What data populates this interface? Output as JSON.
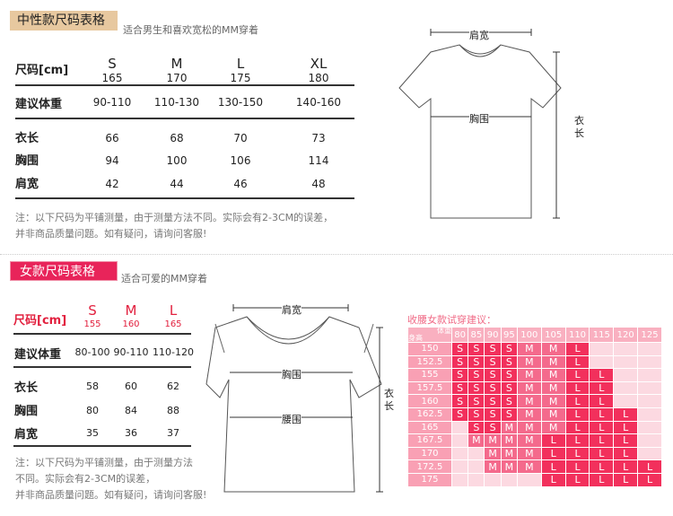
{
  "unisex": {
    "title": "中性款尺码表格",
    "subtitle": "适合男生和喜欢宽松的MM穿着",
    "size_label": "尺码[cm]",
    "sizes": [
      {
        "name": "S",
        "height": "165",
        "weight": "90-110",
        "length": "66",
        "chest": "94",
        "shoulder": "42"
      },
      {
        "name": "M",
        "height": "170",
        "weight": "110-130",
        "length": "68",
        "chest": "100",
        "shoulder": "44"
      },
      {
        "name": "L",
        "height": "175",
        "weight": "130-150",
        "length": "70",
        "chest": "106",
        "shoulder": "46"
      },
      {
        "name": "XL",
        "height": "180",
        "weight": "140-160",
        "length": "73",
        "chest": "114",
        "shoulder": "48"
      }
    ],
    "rows": {
      "weight": "建议体重",
      "length": "衣长",
      "chest": "胸围",
      "shoulder": "肩宽"
    },
    "note": [
      "注：以下尺码为平铺测量，由于测量方法不同。实际会有2-3CM的误差，",
      "并非商品质量问题。如有疑问，请询问客服!"
    ],
    "diagram": {
      "shoulder": "肩宽",
      "chest": "胸围",
      "length": "衣长"
    }
  },
  "women": {
    "title": "女款尺码表格",
    "subtitle": "适合可爱的MM穿着",
    "size_label": "尺码[cm]",
    "sizes": [
      {
        "name": "S",
        "height": "155",
        "weight": "80-100",
        "length": "58",
        "chest": "80",
        "shoulder": "35"
      },
      {
        "name": "M",
        "height": "160",
        "weight": "90-110",
        "length": "60",
        "chest": "84",
        "shoulder": "36"
      },
      {
        "name": "L",
        "height": "165",
        "weight": "110-120",
        "length": "62",
        "chest": "88",
        "shoulder": "37"
      }
    ],
    "rows": {
      "weight": "建议体重",
      "length": "衣长",
      "chest": "胸围",
      "shoulder": "肩宽"
    },
    "note": [
      "注：以下尺码为平铺测量，由于测量方法",
      "不同。实际会有2-3CM的误差，",
      "并非商品质量问题。如有疑问，请询问客服!"
    ],
    "diagram": {
      "shoulder": "肩宽",
      "chest": "胸围",
      "waist": "腰围",
      "length": "衣长"
    }
  },
  "fit_chart": {
    "title": "收腰女款试穿建议：",
    "corner_weight": "体重",
    "corner_height": "身高",
    "weights": [
      "80",
      "85",
      "90",
      "95",
      "100",
      "105",
      "110",
      "115",
      "120",
      "125"
    ],
    "heights": [
      "150",
      "152.5",
      "155",
      "157.5",
      "160",
      "162.5",
      "165",
      "167.5",
      "170",
      "172.5",
      "175"
    ],
    "cells": [
      [
        "S",
        "S",
        "S",
        "S",
        "M",
        "M",
        "L",
        "",
        "",
        ""
      ],
      [
        "S",
        "S",
        "S",
        "S",
        "M",
        "M",
        "L",
        "",
        "",
        ""
      ],
      [
        "S",
        "S",
        "S",
        "S",
        "M",
        "M",
        "L",
        "L",
        "",
        ""
      ],
      [
        "S",
        "S",
        "S",
        "S",
        "M",
        "M",
        "L",
        "L",
        "",
        ""
      ],
      [
        "S",
        "S",
        "S",
        "S",
        "M",
        "M",
        "L",
        "L",
        "",
        ""
      ],
      [
        "S",
        "S",
        "S",
        "S",
        "M",
        "M",
        "L",
        "L",
        "L",
        ""
      ],
      [
        "",
        "S",
        "S",
        "M",
        "M",
        "M",
        "L",
        "L",
        "L",
        ""
      ],
      [
        "",
        "M",
        "M",
        "M",
        "M",
        "L",
        "L",
        "L",
        "L",
        ""
      ],
      [
        "",
        "",
        "M",
        "M",
        "M",
        "L",
        "L",
        "L",
        "L",
        ""
      ],
      [
        "",
        "",
        "M",
        "M",
        "M",
        "L",
        "L",
        "L",
        "L",
        "L"
      ],
      [
        "",
        "",
        "",
        "",
        "",
        "L",
        "L",
        "L",
        "L",
        "L"
      ]
    ],
    "colors": {
      "header": "#f9b0c0",
      "empty": "#fcd9e1",
      "dark": "#f2305c",
      "medium": "#f46a8c",
      "rowhead": "#f9a0b4"
    }
  }
}
